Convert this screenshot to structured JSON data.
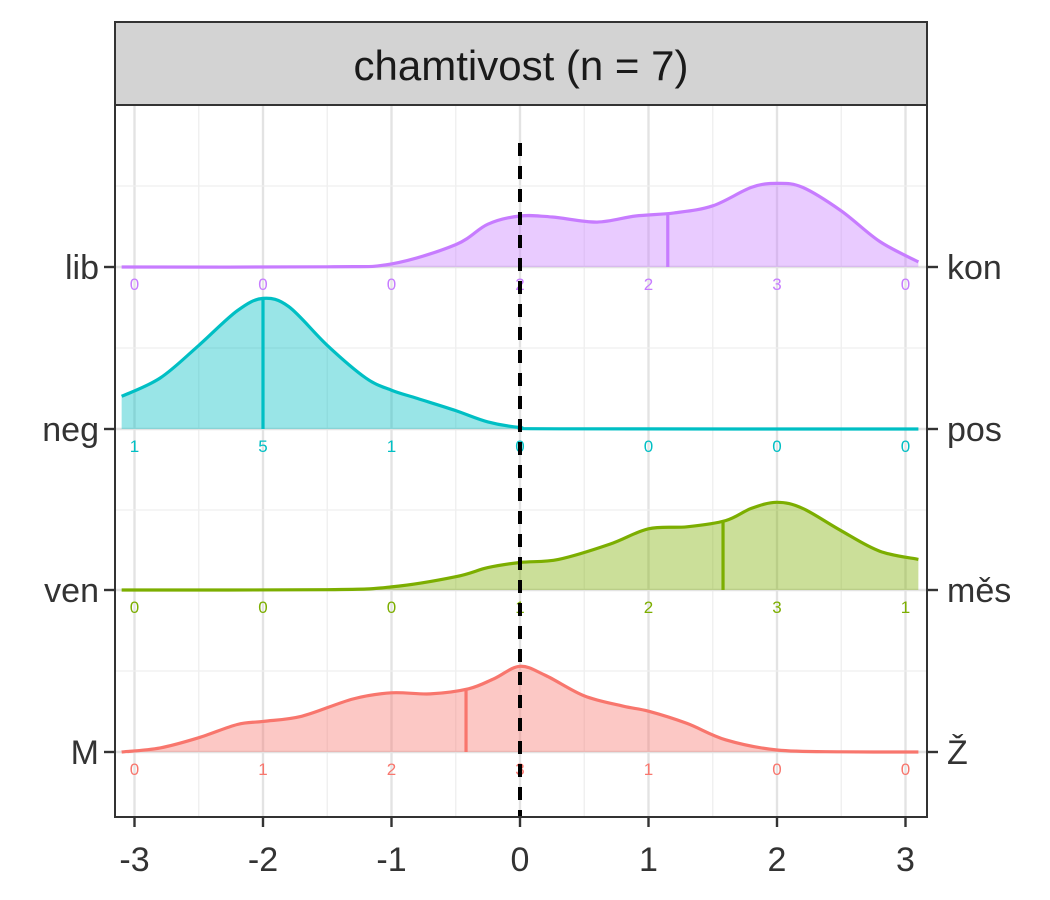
{
  "chart_data": {
    "type": "ridgeline-density",
    "title": "chamtivost (n = 7)",
    "xlim": [
      -3,
      3
    ],
    "x_ticks": [
      -3,
      -2,
      -1,
      0,
      1,
      2,
      3
    ],
    "x_tick_labels": [
      "-3",
      "-2",
      "-1",
      "0",
      "1",
      "2",
      "3"
    ],
    "reference_line_x": 0,
    "grid": true,
    "count_positions": [
      -3,
      -2,
      -1,
      0,
      1,
      2,
      3
    ],
    "series": [
      {
        "left_label": "lib",
        "right_label": "kon",
        "color": "#C77CFF",
        "counts": [
          "0",
          "0",
          "0",
          "2",
          "2",
          "3",
          "0"
        ],
        "median": 1.15,
        "density": [
          [
            -3.1,
            0
          ],
          [
            -1.5,
            0.002
          ],
          [
            -1,
            0.03
          ],
          [
            -0.5,
            0.22
          ],
          [
            -0.25,
            0.42
          ],
          [
            0,
            0.5
          ],
          [
            0.25,
            0.49
          ],
          [
            0.6,
            0.44
          ],
          [
            0.9,
            0.5
          ],
          [
            1.2,
            0.53
          ],
          [
            1.5,
            0.6
          ],
          [
            1.8,
            0.78
          ],
          [
            2.0,
            0.82
          ],
          [
            2.2,
            0.78
          ],
          [
            2.5,
            0.55
          ],
          [
            2.8,
            0.25
          ],
          [
            3.1,
            0.05
          ]
        ]
      },
      {
        "left_label": "neg",
        "right_label": "pos",
        "color": "#00BFC4",
        "counts": [
          "1",
          "5",
          "1",
          "0",
          "0",
          "0",
          "0"
        ],
        "median": -2.0,
        "density": [
          [
            -3.1,
            0.32
          ],
          [
            -2.8,
            0.5
          ],
          [
            -2.5,
            0.82
          ],
          [
            -2.2,
            1.16
          ],
          [
            -2.0,
            1.28
          ],
          [
            -1.8,
            1.2
          ],
          [
            -1.5,
            0.82
          ],
          [
            -1.2,
            0.5
          ],
          [
            -1.0,
            0.38
          ],
          [
            -0.8,
            0.3
          ],
          [
            -0.5,
            0.18
          ],
          [
            -0.25,
            0.07
          ],
          [
            0,
            0.015
          ],
          [
            0.3,
            0.002
          ],
          [
            3.1,
            0
          ]
        ]
      },
      {
        "left_label": "ven",
        "right_label": "měs",
        "color": "#7CAE00",
        "counts": [
          "0",
          "0",
          "0",
          "1",
          "2",
          "3",
          "1"
        ],
        "median": 1.58,
        "density": [
          [
            -3.1,
            0
          ],
          [
            -1.5,
            0.003
          ],
          [
            -1,
            0.03
          ],
          [
            -0.5,
            0.13
          ],
          [
            -0.25,
            0.22
          ],
          [
            0,
            0.27
          ],
          [
            0.3,
            0.3
          ],
          [
            0.7,
            0.45
          ],
          [
            1.0,
            0.6
          ],
          [
            1.3,
            0.62
          ],
          [
            1.6,
            0.68
          ],
          [
            1.8,
            0.8
          ],
          [
            2.0,
            0.86
          ],
          [
            2.2,
            0.8
          ],
          [
            2.5,
            0.58
          ],
          [
            2.8,
            0.38
          ],
          [
            3.1,
            0.3
          ]
        ]
      },
      {
        "left_label": "M",
        "right_label": "Ž",
        "color": "#F8766D",
        "counts": [
          "0",
          "1",
          "2",
          "3",
          "1",
          "0",
          "0"
        ],
        "median": -0.42,
        "density": [
          [
            -3.1,
            0
          ],
          [
            -2.8,
            0.04
          ],
          [
            -2.5,
            0.14
          ],
          [
            -2.2,
            0.27
          ],
          [
            -2.0,
            0.3
          ],
          [
            -1.7,
            0.35
          ],
          [
            -1.3,
            0.52
          ],
          [
            -1.0,
            0.58
          ],
          [
            -0.7,
            0.57
          ],
          [
            -0.4,
            0.62
          ],
          [
            -0.2,
            0.72
          ],
          [
            0,
            0.84
          ],
          [
            0.2,
            0.75
          ],
          [
            0.5,
            0.55
          ],
          [
            0.8,
            0.45
          ],
          [
            1.0,
            0.4
          ],
          [
            1.3,
            0.28
          ],
          [
            1.6,
            0.12
          ],
          [
            2.0,
            0.02
          ],
          [
            2.5,
            0.002
          ],
          [
            3.1,
            0
          ]
        ]
      }
    ]
  }
}
